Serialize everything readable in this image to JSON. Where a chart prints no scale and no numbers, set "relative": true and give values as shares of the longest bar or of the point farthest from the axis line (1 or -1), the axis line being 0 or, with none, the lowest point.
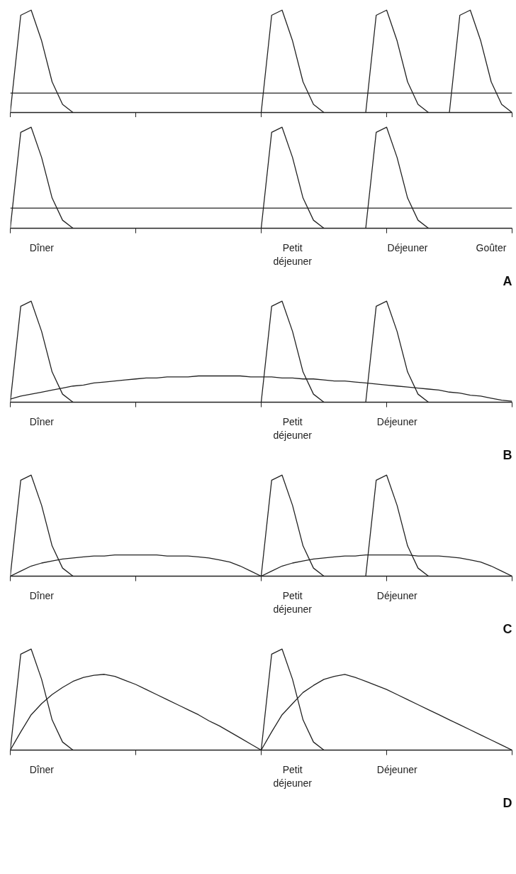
{
  "chart_data": [
    {
      "type": "line",
      "relative": true,
      "categories": [
        null,
        null,
        null,
        null,
        null,
        null,
        null,
        null,
        null,
        null,
        null,
        null,
        null,
        null,
        null,
        null,
        null,
        null,
        null,
        null,
        null,
        null,
        null,
        null,
        null,
        null,
        null,
        null,
        null,
        null,
        null,
        null,
        null,
        null,
        null,
        null,
        null,
        null,
        null,
        null,
        null,
        null,
        null,
        null,
        null,
        null,
        null,
        null,
        null
      ],
      "series": [
        {
          "color": "#222222",
          "values": [
            0,
            0.95,
            1,
            0.7,
            0.3,
            0.08,
            0,
            null,
            null,
            null,
            null,
            null,
            null,
            null,
            null,
            null,
            null,
            null,
            null,
            null,
            null,
            null,
            null,
            null,
            0,
            0.95,
            1,
            0.7,
            0.3,
            0.08,
            0,
            null,
            null,
            null,
            0,
            0.95,
            1,
            0.7,
            0.3,
            0.08,
            0,
            null,
            0,
            0.95,
            1,
            0.7,
            0.3,
            0.08,
            0
          ]
        },
        {
          "color": "#222222",
          "values": [
            0.19,
            0.19,
            0.19,
            0.19,
            0.19,
            0.19,
            0.19,
            0.19,
            0.19,
            0.19,
            0.19,
            0.19,
            0.19,
            0.19,
            0.19,
            0.19,
            0.19,
            0.19,
            0.19,
            0.19,
            0.19,
            0.19,
            0.19,
            0.19,
            0.19,
            0.19,
            0.19,
            0.19,
            0.19,
            0.19,
            0.19,
            0.19,
            0.19,
            0.19,
            0.19,
            0.19,
            0.19,
            0.19,
            0.19,
            0.19,
            0.19,
            0.19,
            0.19,
            0.19,
            0.19,
            0.19,
            0.19,
            0.19,
            0.19
          ]
        }
      ]
    },
    {
      "type": "line",
      "relative": true,
      "tick_labels": "x",
      "title": "A",
      "categories": [
        null,
        null,
        null,
        "Dîner",
        null,
        null,
        null,
        null,
        null,
        null,
        null,
        null,
        null,
        null,
        null,
        null,
        null,
        null,
        null,
        null,
        null,
        null,
        null,
        null,
        null,
        null,
        null,
        "Petit\ndéjeuner",
        null,
        null,
        null,
        null,
        null,
        null,
        null,
        null,
        null,
        null,
        "Déjeuner",
        null,
        null,
        null,
        null,
        null,
        null,
        null,
        "Goûter",
        null,
        null
      ],
      "series": [
        {
          "color": "#222222",
          "values": [
            0,
            0.95,
            1,
            0.7,
            0.3,
            0.08,
            0,
            null,
            null,
            null,
            null,
            null,
            null,
            null,
            null,
            null,
            null,
            null,
            null,
            null,
            null,
            null,
            null,
            null,
            0,
            0.95,
            1,
            0.7,
            0.3,
            0.08,
            0,
            null,
            null,
            null,
            0,
            0.95,
            1,
            0.7,
            0.3,
            0.08,
            0,
            null,
            null,
            null,
            null,
            null,
            null,
            null,
            null
          ]
        },
        {
          "color": "#222222",
          "values": [
            0.2,
            0.2,
            0.2,
            0.2,
            0.2,
            0.2,
            0.2,
            0.2,
            0.2,
            0.2,
            0.2,
            0.2,
            0.2,
            0.2,
            0.2,
            0.2,
            0.2,
            0.2,
            0.2,
            0.2,
            0.2,
            0.2,
            0.2,
            0.2,
            0.2,
            0.2,
            0.2,
            0.2,
            0.2,
            0.2,
            0.2,
            0.2,
            0.2,
            0.2,
            0.2,
            0.2,
            0.2,
            0.2,
            0.2,
            0.2,
            0.2,
            0.2,
            0.2,
            0.2,
            0.2,
            0.2,
            0.2,
            0.2,
            0.2
          ]
        }
      ]
    },
    {
      "type": "line",
      "relative": true,
      "tick_labels": "x",
      "title": "B",
      "categories": [
        null,
        null,
        null,
        "Dîner",
        null,
        null,
        null,
        null,
        null,
        null,
        null,
        null,
        null,
        null,
        null,
        null,
        null,
        null,
        null,
        null,
        null,
        null,
        null,
        null,
        null,
        null,
        null,
        "Petit\ndéjeuner",
        null,
        null,
        null,
        null,
        null,
        null,
        null,
        null,
        null,
        "Déjeuner",
        null,
        null,
        null,
        null,
        null,
        null,
        null,
        null,
        null,
        null,
        null
      ],
      "series": [
        {
          "color": "#222222",
          "values": [
            0,
            0.95,
            1,
            0.7,
            0.3,
            0.08,
            0,
            null,
            null,
            null,
            null,
            null,
            null,
            null,
            null,
            null,
            null,
            null,
            null,
            null,
            null,
            null,
            null,
            null,
            0,
            0.95,
            1,
            0.7,
            0.3,
            0.08,
            0,
            null,
            null,
            null,
            0,
            0.95,
            1,
            0.7,
            0.3,
            0.08,
            0,
            null,
            null,
            null,
            null,
            null,
            null,
            null,
            null
          ]
        },
        {
          "color": "#222222",
          "values": [
            0.03,
            0.06,
            0.08,
            0.1,
            0.12,
            0.14,
            0.16,
            0.17,
            0.19,
            0.2,
            0.21,
            0.22,
            0.23,
            0.24,
            0.24,
            0.25,
            0.25,
            0.25,
            0.26,
            0.26,
            0.26,
            0.26,
            0.26,
            0.25,
            0.25,
            0.25,
            0.24,
            0.24,
            0.23,
            0.23,
            0.22,
            0.21,
            0.21,
            0.2,
            0.19,
            0.18,
            0.17,
            0.16,
            0.15,
            0.14,
            0.13,
            0.12,
            0.1,
            0.09,
            0.07,
            0.06,
            0.04,
            0.02,
            0.01
          ]
        }
      ]
    },
    {
      "type": "line",
      "relative": true,
      "tick_labels": "x",
      "title": "C",
      "categories": [
        null,
        null,
        null,
        "Dîner",
        null,
        null,
        null,
        null,
        null,
        null,
        null,
        null,
        null,
        null,
        null,
        null,
        null,
        null,
        null,
        null,
        null,
        null,
        null,
        null,
        null,
        null,
        null,
        "Petit\ndéjeuner",
        null,
        null,
        null,
        null,
        null,
        null,
        null,
        null,
        null,
        "Déjeuner",
        null,
        null,
        null,
        null,
        null,
        null,
        null,
        null,
        null,
        null,
        null
      ],
      "series": [
        {
          "color": "#222222",
          "values": [
            0,
            0.95,
            1,
            0.7,
            0.3,
            0.08,
            0,
            null,
            null,
            null,
            null,
            null,
            null,
            null,
            null,
            null,
            null,
            null,
            null,
            null,
            null,
            null,
            null,
            null,
            0,
            0.95,
            1,
            0.7,
            0.3,
            0.08,
            0,
            null,
            null,
            null,
            0,
            0.95,
            1,
            0.7,
            0.3,
            0.08,
            0,
            null,
            null,
            null,
            null,
            null,
            null,
            null,
            null
          ]
        },
        {
          "color": "#222222",
          "values": [
            0,
            0.05,
            0.1,
            0.13,
            0.15,
            0.17,
            0.18,
            0.19,
            0.2,
            0.2,
            0.21,
            0.21,
            0.21,
            0.21,
            0.21,
            0.2,
            0.2,
            0.2,
            0.19,
            0.18,
            0.16,
            0.14,
            0.1,
            0.05,
            0,
            0.05,
            0.1,
            0.13,
            0.15,
            0.17,
            0.18,
            0.19,
            0.2,
            0.2,
            0.21,
            0.21,
            0.21,
            0.21,
            0.21,
            0.2,
            0.2,
            0.2,
            0.19,
            0.18,
            0.16,
            0.14,
            0.1,
            0.05,
            0
          ]
        }
      ]
    },
    {
      "type": "line",
      "relative": true,
      "tick_labels": "x",
      "title": "D",
      "categories": [
        null,
        null,
        null,
        "Dîner",
        null,
        null,
        null,
        null,
        null,
        null,
        null,
        null,
        null,
        null,
        null,
        null,
        null,
        null,
        null,
        null,
        null,
        null,
        null,
        null,
        null,
        null,
        null,
        "Petit\ndéjeuner",
        null,
        null,
        null,
        null,
        null,
        null,
        null,
        null,
        null,
        "Déjeuner",
        null,
        null,
        null,
        null,
        null,
        null,
        null,
        null,
        null,
        null,
        null
      ],
      "series": [
        {
          "color": "#222222",
          "values": [
            0,
            0.95,
            1,
            0.7,
            0.3,
            0.08,
            0,
            null,
            null,
            null,
            null,
            null,
            null,
            null,
            null,
            null,
            null,
            null,
            null,
            null,
            null,
            null,
            null,
            null,
            0,
            0.95,
            1,
            0.7,
            0.3,
            0.08,
            0,
            null,
            null,
            null,
            null,
            null,
            null,
            null,
            null,
            null,
            null,
            null,
            null,
            null,
            null,
            null,
            null,
            null,
            null
          ]
        },
        {
          "color": "#222222",
          "values": [
            0,
            0.18,
            0.35,
            0.46,
            0.55,
            0.62,
            0.68,
            0.72,
            0.74,
            0.75,
            0.73,
            0.69,
            0.65,
            0.6,
            0.55,
            0.5,
            0.45,
            0.4,
            0.35,
            0.29,
            0.24,
            0.18,
            0.12,
            0.06,
            0,
            0.18,
            0.35,
            0.46,
            0.57,
            0.64,
            0.7,
            0.73,
            0.75,
            0.72,
            0.68,
            0.64,
            0.6,
            0.55,
            0.5,
            0.45,
            0.4,
            0.35,
            0.3,
            0.25,
            0.2,
            0.15,
            0.1,
            0.05,
            0
          ]
        }
      ]
    }
  ]
}
